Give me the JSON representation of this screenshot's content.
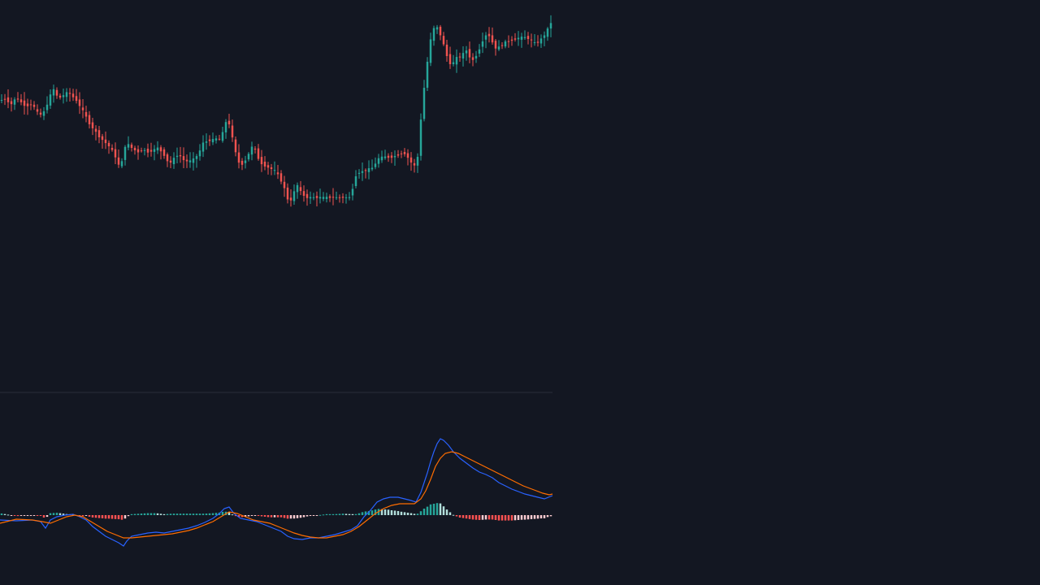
{
  "colors": {
    "background": "#131722",
    "up": "#26a69a",
    "down": "#ef5350",
    "hist_up_strong": "#26a69a",
    "hist_up_weak": "#b2dfdb",
    "hist_down_strong": "#ff5252",
    "hist_down_weak": "#ffcdd2",
    "macd_line": "#2962ff",
    "signal_line": "#ff6d00",
    "separator": "#2a2e39"
  },
  "chart_data": [
    {
      "type": "candlestick",
      "title": "",
      "xlabel": "",
      "ylabel": "",
      "grid": false,
      "axis_labels_visible": false,
      "bar_count": 170,
      "path_anchors": [
        [
          0,
          124
        ],
        [
          8,
          122
        ],
        [
          16,
          128
        ],
        [
          22,
          120
        ],
        [
          28,
          126
        ],
        [
          34,
          131
        ],
        [
          40,
          128
        ],
        [
          45,
          133
        ],
        [
          50,
          142
        ],
        [
          55,
          140
        ],
        [
          60,
          128
        ],
        [
          64,
          117
        ],
        [
          68,
          110
        ],
        [
          72,
          118
        ],
        [
          76,
          120
        ],
        [
          80,
          117
        ],
        [
          86,
          113
        ],
        [
          90,
          118
        ],
        [
          95,
          122
        ],
        [
          100,
          130
        ],
        [
          106,
          140
        ],
        [
          112,
          152
        ],
        [
          118,
          160
        ],
        [
          124,
          168
        ],
        [
          130,
          174
        ],
        [
          136,
          180
        ],
        [
          142,
          188
        ],
        [
          148,
          203
        ],
        [
          152,
          199
        ],
        [
          156,
          180
        ],
        [
          160,
          178
        ],
        [
          166,
          184
        ],
        [
          172,
          187
        ],
        [
          178,
          184
        ],
        [
          184,
          187
        ],
        [
          190,
          185
        ],
        [
          196,
          182
        ],
        [
          202,
          188
        ],
        [
          206,
          194
        ],
        [
          210,
          202
        ],
        [
          214,
          198
        ],
        [
          218,
          192
        ],
        [
          222,
          190
        ],
        [
          228,
          197
        ],
        [
          234,
          199
        ],
        [
          240,
          196
        ],
        [
          246,
          190
        ],
        [
          252,
          176
        ],
        [
          258,
          173
        ],
        [
          264,
          172
        ],
        [
          270,
          170
        ],
        [
          274,
          172
        ],
        [
          278,
          155
        ],
        [
          282,
          145
        ],
        [
          286,
          160
        ],
        [
          290,
          180
        ],
        [
          294,
          196
        ],
        [
          298,
          204
        ],
        [
          302,
          200
        ],
        [
          306,
          194
        ],
        [
          310,
          184
        ],
        [
          314,
          178
        ],
        [
          318,
          190
        ],
        [
          322,
          200
        ],
        [
          328,
          204
        ],
        [
          334,
          207
        ],
        [
          340,
          210
        ],
        [
          346,
          218
        ],
        [
          352,
          232
        ],
        [
          356,
          245
        ],
        [
          360,
          246
        ],
        [
          364,
          236
        ],
        [
          368,
          228
        ],
        [
          372,
          236
        ],
        [
          378,
          243
        ],
        [
          386,
          243
        ],
        [
          394,
          243
        ],
        [
          404,
          243
        ],
        [
          414,
          243
        ],
        [
          424,
          243
        ],
        [
          434,
          243
        ],
        [
          438,
          220
        ],
        [
          442,
          212
        ],
        [
          446,
          212
        ],
        [
          450,
          210
        ],
        [
          456,
          208
        ],
        [
          462,
          206
        ],
        [
          466,
          196
        ],
        [
          470,
          194
        ],
        [
          476,
          193
        ],
        [
          482,
          194
        ],
        [
          488,
          192
        ],
        [
          494,
          190
        ],
        [
          498,
          188
        ],
        [
          502,
          190
        ],
        [
          506,
          198
        ],
        [
          510,
          202
        ],
        [
          514,
          206
        ],
        [
          518,
          180
        ],
        [
          521,
          130
        ],
        [
          524,
          108
        ],
        [
          527,
          85
        ],
        [
          530,
          58
        ],
        [
          534,
          40
        ],
        [
          538,
          30
        ],
        [
          542,
          38
        ],
        [
          546,
          48
        ],
        [
          550,
          62
        ],
        [
          554,
          76
        ],
        [
          558,
          80
        ],
        [
          562,
          74
        ],
        [
          566,
          68
        ],
        [
          570,
          72
        ],
        [
          574,
          60
        ],
        [
          578,
          64
        ],
        [
          582,
          76
        ],
        [
          586,
          72
        ],
        [
          590,
          64
        ],
        [
          594,
          56
        ],
        [
          598,
          44
        ],
        [
          602,
          42
        ],
        [
          606,
          46
        ],
        [
          610,
          58
        ],
        [
          614,
          60
        ],
        [
          618,
          56
        ],
        [
          624,
          52
        ],
        [
          630,
          50
        ],
        [
          636,
          48
        ],
        [
          642,
          46
        ],
        [
          648,
          46
        ],
        [
          654,
          48
        ],
        [
          658,
          52
        ],
        [
          662,
          54
        ],
        [
          666,
          50
        ],
        [
          670,
          46
        ],
        [
          674,
          40
        ],
        [
          678,
          32
        ],
        [
          680,
          28
        ]
      ]
    },
    {
      "type": "macd",
      "title": "",
      "xlabel": "",
      "ylabel": "",
      "grid": false,
      "axis_labels_visible": false,
      "zero_line_y_anchor": 634,
      "series": [
        {
          "role": "macd",
          "points": [
            [
              0,
              640
            ],
            [
              20,
              641
            ],
            [
              40,
              640
            ],
            [
              50,
              642
            ],
            [
              56,
              650
            ],
            [
              62,
              640
            ],
            [
              70,
              636
            ],
            [
              80,
              634
            ],
            [
              90,
              633
            ],
            [
              98,
              636
            ],
            [
              106,
              640
            ],
            [
              114,
              648
            ],
            [
              122,
              654
            ],
            [
              130,
              660
            ],
            [
              138,
              664
            ],
            [
              146,
              668
            ],
            [
              152,
              672
            ],
            [
              156,
              666
            ],
            [
              162,
              660
            ],
            [
              172,
              658
            ],
            [
              182,
              656
            ],
            [
              192,
              655
            ],
            [
              202,
              656
            ],
            [
              212,
              654
            ],
            [
              222,
              652
            ],
            [
              232,
              650
            ],
            [
              242,
              647
            ],
            [
              252,
              643
            ],
            [
              262,
              638
            ],
            [
              270,
              632
            ],
            [
              276,
              626
            ],
            [
              282,
              624
            ],
            [
              288,
              632
            ],
            [
              296,
              638
            ],
            [
              306,
              640
            ],
            [
              316,
              642
            ],
            [
              326,
              646
            ],
            [
              336,
              650
            ],
            [
              346,
              654
            ],
            [
              354,
              660
            ],
            [
              362,
              663
            ],
            [
              372,
              664
            ],
            [
              382,
              662
            ],
            [
              392,
              662
            ],
            [
              402,
              660
            ],
            [
              412,
              658
            ],
            [
              422,
              655
            ],
            [
              432,
              652
            ],
            [
              440,
              647
            ],
            [
              448,
              636
            ],
            [
              456,
              628
            ],
            [
              464,
              618
            ],
            [
              472,
              614
            ],
            [
              480,
              612
            ],
            [
              490,
              612
            ],
            [
              498,
              614
            ],
            [
              506,
              616
            ],
            [
              512,
              618
            ],
            [
              518,
              606
            ],
            [
              522,
              594
            ],
            [
              526,
              582
            ],
            [
              530,
              568
            ],
            [
              534,
              556
            ],
            [
              538,
              546
            ],
            [
              542,
              540
            ],
            [
              546,
              542
            ],
            [
              552,
              548
            ],
            [
              558,
              556
            ],
            [
              566,
              564
            ],
            [
              574,
              570
            ],
            [
              582,
              576
            ],
            [
              590,
              581
            ],
            [
              598,
              584
            ],
            [
              606,
              588
            ],
            [
              614,
              594
            ],
            [
              622,
              598
            ],
            [
              630,
              602
            ],
            [
              638,
              605
            ],
            [
              646,
              608
            ],
            [
              654,
              610
            ],
            [
              662,
              612
            ],
            [
              670,
              614
            ],
            [
              680,
              610
            ]
          ]
        },
        {
          "role": "signal",
          "points": [
            [
              0,
              644
            ],
            [
              20,
              639
            ],
            [
              40,
              640
            ],
            [
              52,
              642
            ],
            [
              62,
              644
            ],
            [
              72,
              640
            ],
            [
              82,
              636
            ],
            [
              92,
              634
            ],
            [
              102,
              636
            ],
            [
              112,
              642
            ],
            [
              122,
              648
            ],
            [
              132,
              654
            ],
            [
              142,
              658
            ],
            [
              152,
              662
            ],
            [
              162,
              662
            ],
            [
              172,
              661
            ],
            [
              182,
              660
            ],
            [
              192,
              659
            ],
            [
              202,
              658
            ],
            [
              212,
              657
            ],
            [
              222,
              655
            ],
            [
              232,
              653
            ],
            [
              242,
              650
            ],
            [
              252,
              646
            ],
            [
              262,
              642
            ],
            [
              272,
              636
            ],
            [
              282,
              630
            ],
            [
              292,
              632
            ],
            [
              302,
              636
            ],
            [
              312,
              640
            ],
            [
              322,
              642
            ],
            [
              332,
              644
            ],
            [
              342,
              648
            ],
            [
              352,
              652
            ],
            [
              362,
              656
            ],
            [
              372,
              659
            ],
            [
              382,
              661
            ],
            [
              392,
              662
            ],
            [
              402,
              662
            ],
            [
              412,
              660
            ],
            [
              422,
              658
            ],
            [
              432,
              654
            ],
            [
              442,
              648
            ],
            [
              452,
              640
            ],
            [
              462,
              632
            ],
            [
              472,
              626
            ],
            [
              482,
              622
            ],
            [
              492,
              620
            ],
            [
              502,
              620
            ],
            [
              510,
              620
            ],
            [
              518,
              614
            ],
            [
              524,
              604
            ],
            [
              530,
              590
            ],
            [
              536,
              574
            ],
            [
              542,
              564
            ],
            [
              548,
              558
            ],
            [
              556,
              556
            ],
            [
              564,
              558
            ],
            [
              572,
              562
            ],
            [
              580,
              566
            ],
            [
              588,
              570
            ],
            [
              596,
              574
            ],
            [
              604,
              578
            ],
            [
              612,
              582
            ],
            [
              620,
              586
            ],
            [
              628,
              590
            ],
            [
              636,
              594
            ],
            [
              644,
              598
            ],
            [
              652,
              601
            ],
            [
              660,
              604
            ],
            [
              668,
              607
            ],
            [
              676,
              609
            ],
            [
              680,
              608
            ]
          ]
        }
      ]
    }
  ]
}
